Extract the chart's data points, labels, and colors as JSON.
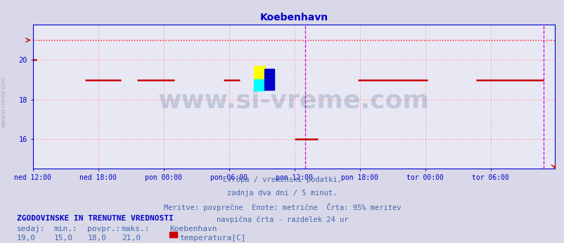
{
  "title": "Koebenhavn",
  "bg_color": "#d8d8e8",
  "plot_bg_color": "#e8e8f4",
  "title_color": "#0000cc",
  "title_fontsize": 10,
  "grid_color": "#ffaaaa",
  "grid_linestyle": "--",
  "axis_color": "#0000cc",
  "spine_color": "#0000cc",
  "ylim": [
    14.5,
    21.8
  ],
  "yticks": [
    16,
    18,
    20
  ],
  "xlim": [
    0,
    575
  ],
  "xtick_labels": [
    "ned 12:00",
    "ned 18:00",
    "pon 00:00",
    "pon 06:00",
    "pon 12:00",
    "pon 18:00",
    "tor 00:00",
    "tor 06:00"
  ],
  "xtick_positions": [
    0,
    72,
    144,
    216,
    288,
    360,
    432,
    504
  ],
  "max_line_y": 21.0,
  "max_line_color": "#ff0000",
  "vertical_line_x": 300,
  "vertical_line_color": "#cc00cc",
  "right_border_x": 562,
  "right_border_color": "#cc00cc",
  "watermark_text": "www.si-vreme.com",
  "watermark_color": "#1a3a6a",
  "watermark_alpha": 0.18,
  "watermark_fontsize": 26,
  "footer_lines": [
    "Evropa / vremenski podatki,",
    "zadnja dva dni / 5 minut.",
    "Meritve: povprečne  Enote: metrične  Črta: 95% meritev",
    "navpična črta - razdelek 24 ur"
  ],
  "footer_color": "#4466aa",
  "footer_fontsize": 7.5,
  "stat_header": "ZGODOVINSKE IN TRENUTNE VREDNOSTI",
  "stat_labels": [
    "sedaj:",
    "min.:",
    "povpr.:",
    "maks.:"
  ],
  "stat_values": [
    "19,0",
    "15,0",
    "18,0",
    "21,0"
  ],
  "stat_station": "Koebenhavn",
  "stat_series": "temperatura[C]",
  "stat_color": "#4466aa",
  "stat_bold_color": "#0000cc",
  "stat_fontsize": 8,
  "legend_color": "#cc0000",
  "data_segments": [
    {
      "x_start": 0,
      "x_end": 4,
      "y": 20.0
    },
    {
      "x_start": 58,
      "x_end": 97,
      "y": 19.0
    },
    {
      "x_start": 115,
      "x_end": 156,
      "y": 19.0
    },
    {
      "x_start": 210,
      "x_end": 228,
      "y": 19.0
    },
    {
      "x_start": 288,
      "x_end": 314,
      "y": 16.0
    },
    {
      "x_start": 358,
      "x_end": 435,
      "y": 19.0
    },
    {
      "x_start": 488,
      "x_end": 562,
      "y": 19.0
    }
  ],
  "data_color": "#cc0000",
  "data_linewidth": 1.8,
  "left_label": "www.si-vreme.com",
  "left_label_color": "#999999",
  "arrow_color": "#cc0000"
}
